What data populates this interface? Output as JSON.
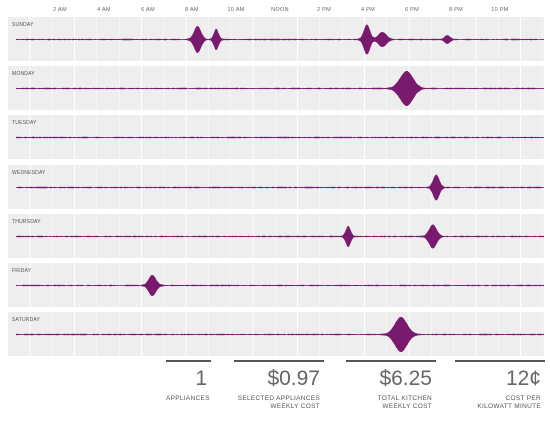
{
  "chart_data": {
    "type": "area",
    "x_unit": "hour of day",
    "x_range": [
      0,
      24
    ],
    "time_ticks": [
      {
        "label": "2 AM",
        "hour": 2
      },
      {
        "label": "4 AM",
        "hour": 4
      },
      {
        "label": "6 AM",
        "hour": 6
      },
      {
        "label": "8 AM",
        "hour": 8
      },
      {
        "label": "10 AM",
        "hour": 10
      },
      {
        "label": "NOON",
        "hour": 12
      },
      {
        "label": "2 PM",
        "hour": 14
      },
      {
        "label": "4 PM",
        "hour": 16
      },
      {
        "label": "6 PM",
        "hour": 18
      },
      {
        "label": "8 PM",
        "hour": 20
      },
      {
        "label": "10 PM",
        "hour": 22
      }
    ],
    "series_color": "#7a1a6e",
    "peak_scale": 1.0,
    "days": [
      {
        "name": "SUNDAY",
        "events": [
          {
            "hour": 8.25,
            "level": 0.78,
            "width": 0.48
          },
          {
            "hour": 9.1,
            "level": 0.62,
            "width": 0.32
          },
          {
            "hour": 15.95,
            "level": 0.88,
            "width": 0.42
          },
          {
            "hour": 16.65,
            "level": 0.42,
            "width": 0.55
          },
          {
            "hour": 19.6,
            "level": 0.22,
            "width": 0.38
          }
        ]
      },
      {
        "name": "MONDAY",
        "events": [
          {
            "hour": 17.75,
            "level": 1.0,
            "width": 0.9
          }
        ]
      },
      {
        "name": "TUESDAY",
        "events": []
      },
      {
        "name": "WEDNESDAY",
        "events": [
          {
            "hour": 19.1,
            "level": 0.75,
            "width": 0.42
          }
        ]
      },
      {
        "name": "THURSDAY",
        "events": [
          {
            "hour": 15.1,
            "level": 0.62,
            "width": 0.32
          },
          {
            "hour": 18.95,
            "level": 0.68,
            "width": 0.52
          }
        ]
      },
      {
        "name": "FRIDAY",
        "events": [
          {
            "hour": 6.2,
            "level": 0.6,
            "width": 0.5
          }
        ]
      },
      {
        "name": "SATURDAY",
        "events": [
          {
            "hour": 17.5,
            "level": 1.0,
            "width": 0.85
          }
        ]
      }
    ]
  },
  "stats": [
    {
      "value": "1",
      "caption_line1": "APPLIANCES",
      "caption_line2": ""
    },
    {
      "value": "$0.97",
      "caption_line1": "SELECTED APPLIANCES",
      "caption_line2": "WEEKLY COST"
    },
    {
      "value": "$6.25",
      "caption_line1": "TOTAL KITCHEN",
      "caption_line2": "WEEKLY COST"
    },
    {
      "value": "12¢",
      "caption_line1": "COST PER",
      "caption_line2": "KILOWATT MINUTE"
    }
  ]
}
